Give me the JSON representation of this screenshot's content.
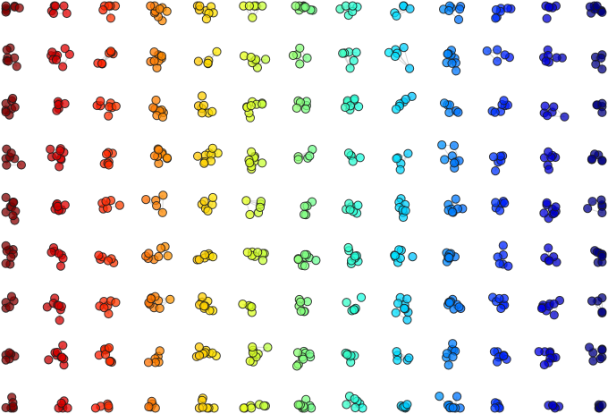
{
  "figure": {
    "kind": "network-graph",
    "background": "#ffffff",
    "edge_color": "#c8c8c8",
    "node_outline_color": "#1a1a1a",
    "colormap": "jet",
    "color_direction": "left-to-right",
    "colormap_stops": [
      "#800000",
      "#ff0000",
      "#ff8000",
      "#ffff00",
      "#80ff80",
      "#00ffff",
      "#0080ff",
      "#0000ff",
      "#000080"
    ],
    "grid_columns": 12,
    "grid_rows": 8,
    "node_count": 700,
    "title": ""
  }
}
